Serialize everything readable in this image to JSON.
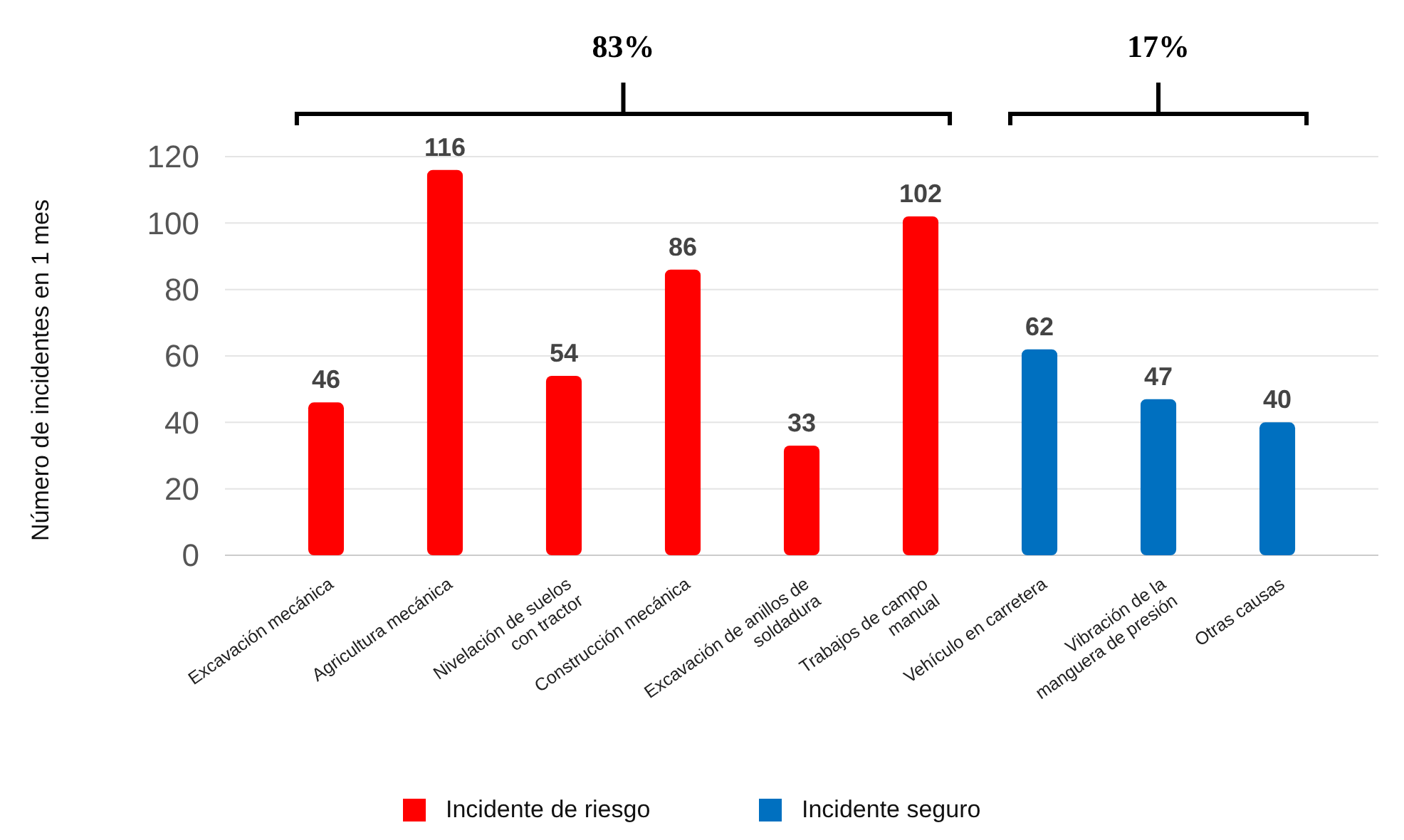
{
  "chart_data": {
    "type": "bar",
    "ylabel": "Número de incidentes en 1 mes",
    "categories": [
      "Excavación mecánica",
      "Agricultura mecánica",
      "Nivelación de suelos\ncon tractor",
      "Construcción mecánica",
      "Excavación de anillos de\nsoldadura",
      "Trabajos de campo\nmanual",
      "Vehículo en carretera",
      "Vibración de la\nmanguera de presión",
      "Otras causas"
    ],
    "series": [
      {
        "name": "Incidente de riesgo",
        "color": "#ff0000",
        "values": [
          46,
          116,
          54,
          86,
          33,
          102,
          null,
          null,
          null
        ]
      },
      {
        "name": "Incidente seguro",
        "color": "#0070c0",
        "values": [
          null,
          null,
          null,
          null,
          null,
          null,
          62,
          47,
          40
        ]
      }
    ],
    "ylim": [
      0,
      120
    ],
    "yticks": [
      0,
      20,
      40,
      60,
      80,
      100,
      120
    ],
    "grid": "y",
    "data_labels": true,
    "legend": "bottom",
    "annotations": [
      "83%",
      "17%"
    ]
  }
}
